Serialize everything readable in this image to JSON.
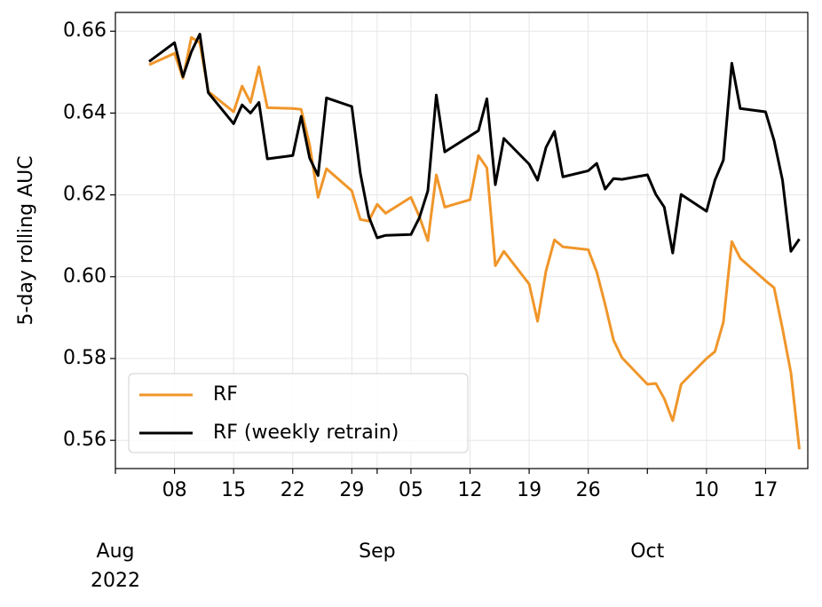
{
  "chart_data": {
    "type": "line",
    "y_label": "5-day rolling AUC",
    "x": [
      "2022-08-05",
      "2022-08-08",
      "2022-08-09",
      "2022-08-10",
      "2022-08-11",
      "2022-08-12",
      "2022-08-15",
      "2022-08-16",
      "2022-08-17",
      "2022-08-18",
      "2022-08-19",
      "2022-08-22",
      "2022-08-23",
      "2022-08-24",
      "2022-08-25",
      "2022-08-26",
      "2022-08-29",
      "2022-08-30",
      "2022-08-31",
      "2022-09-01",
      "2022-09-02",
      "2022-09-05",
      "2022-09-06",
      "2022-09-07",
      "2022-09-08",
      "2022-09-09",
      "2022-09-12",
      "2022-09-13",
      "2022-09-14",
      "2022-09-15",
      "2022-09-16",
      "2022-09-19",
      "2022-09-20",
      "2022-09-21",
      "2022-09-22",
      "2022-09-23",
      "2022-09-26",
      "2022-09-27",
      "2022-09-28",
      "2022-09-29",
      "2022-09-30",
      "2022-10-03",
      "2022-10-04",
      "2022-10-05",
      "2022-10-06",
      "2022-10-07",
      "2022-10-10",
      "2022-10-11",
      "2022-10-12",
      "2022-10-13",
      "2022-10-14",
      "2022-10-17",
      "2022-10-18",
      "2022-10-19",
      "2022-10-20",
      "2022-10-21"
    ],
    "series": [
      {
        "name": "RF",
        "color": "#f0962a",
        "values": [
          0.6518,
          0.6546,
          0.6485,
          0.6585,
          0.6572,
          0.6453,
          0.6403,
          0.6466,
          0.6426,
          0.6513,
          0.6413,
          0.6411,
          0.6409,
          0.6322,
          0.6194,
          0.6264,
          0.621,
          0.614,
          0.6136,
          0.6177,
          0.6155,
          0.6194,
          0.6147,
          0.6088,
          0.6249,
          0.617,
          0.6188,
          0.6296,
          0.6266,
          0.6027,
          0.6062,
          0.5982,
          0.5891,
          0.6014,
          0.609,
          0.6073,
          0.6066,
          0.6012,
          0.5932,
          0.5845,
          0.5802,
          0.5737,
          0.5739,
          0.5702,
          0.5648,
          0.5737,
          0.58,
          0.5817,
          0.5889,
          0.6086,
          0.6045,
          0.599,
          0.5973,
          0.5873,
          0.5765,
          0.5578
        ]
      },
      {
        "name": "RF (weekly retrain)",
        "color": "#000000",
        "values": [
          0.6526,
          0.6572,
          0.6489,
          0.655,
          0.6593,
          0.645,
          0.6374,
          0.642,
          0.64,
          0.6426,
          0.6288,
          0.6296,
          0.6392,
          0.629,
          0.6247,
          0.6437,
          0.6416,
          0.6253,
          0.6147,
          0.6095,
          0.6101,
          0.6103,
          0.6144,
          0.621,
          0.6444,
          0.6305,
          0.6344,
          0.6357,
          0.6435,
          0.6225,
          0.6338,
          0.6275,
          0.6236,
          0.6316,
          0.6355,
          0.6244,
          0.6259,
          0.6277,
          0.6214,
          0.624,
          0.6238,
          0.6249,
          0.6201,
          0.617,
          0.6058,
          0.6201,
          0.616,
          0.6236,
          0.6285,
          0.6522,
          0.6411,
          0.6403,
          0.6333,
          0.6236,
          0.6062,
          0.6092
        ]
      }
    ],
    "xlim": [
      "2022-08-01",
      "2022-10-22"
    ],
    "xticks": [
      {
        "value": "2022-08-08",
        "label": "08"
      },
      {
        "value": "2022-08-15",
        "label": "15"
      },
      {
        "value": "2022-08-22",
        "label": "22"
      },
      {
        "value": "2022-08-29",
        "label": "29"
      },
      {
        "value": "2022-09-05",
        "label": "05"
      },
      {
        "value": "2022-09-12",
        "label": "12"
      },
      {
        "value": "2022-09-19",
        "label": "19"
      },
      {
        "value": "2022-09-26",
        "label": "26"
      },
      {
        "value": "2022-10-10",
        "label": "10"
      },
      {
        "value": "2022-10-17",
        "label": "17"
      }
    ],
    "month_ticks": [
      {
        "value": "2022-08-01",
        "label": "Aug"
      },
      {
        "value": "2022-09-01",
        "label": "Sep"
      },
      {
        "value": "2022-10-03",
        "label": "Oct"
      }
    ],
    "x_offset_label": "2022",
    "ylim": [
      0.5531,
      0.6646
    ],
    "yticks": [
      0.56,
      0.58,
      {
        "value": 0.6,
        "label": "0.60"
      },
      0.62,
      0.64,
      0.66
    ],
    "grid": true,
    "legend": "lower left"
  }
}
